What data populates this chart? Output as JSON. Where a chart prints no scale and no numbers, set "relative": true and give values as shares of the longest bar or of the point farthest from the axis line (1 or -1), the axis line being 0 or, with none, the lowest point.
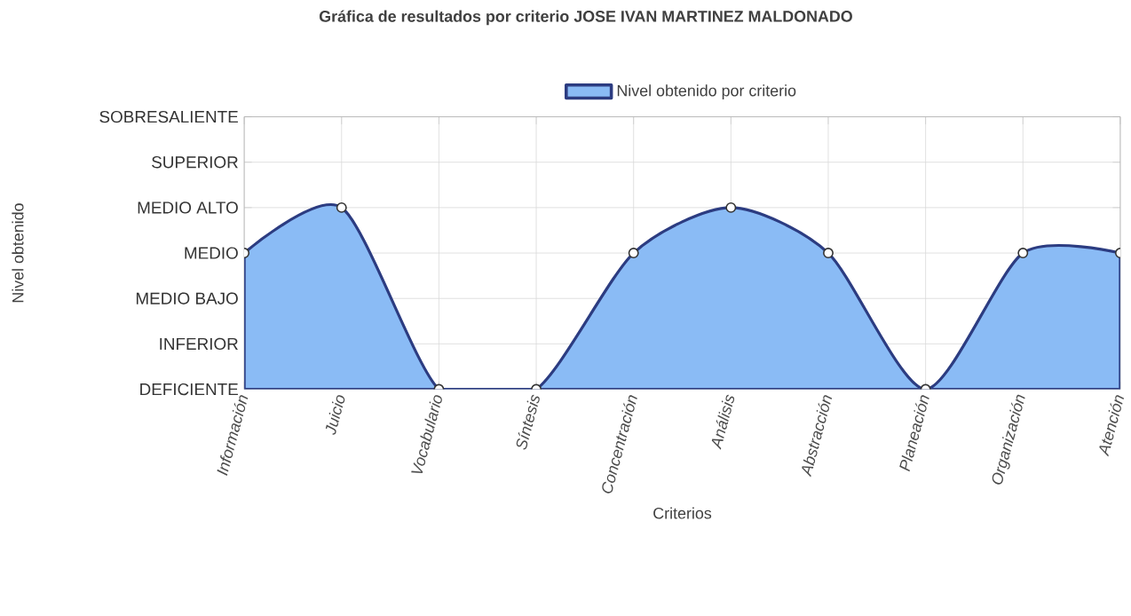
{
  "chart_data": {
    "type": "area",
    "title": "Gráfica de resultados por criterio JOSE IVAN MARTINEZ MALDONADO",
    "xlabel": "Criterios",
    "categories": [
      "Información",
      "Juicio",
      "Vocabulario",
      "Síntesis",
      "Concentración",
      "Análisis",
      "Abstracción",
      "Planeación",
      "Organización",
      "Atención"
    ],
    "series": [
      {
        "name": "Nivel obtenido por criterio",
        "color": "#8abbf5",
        "values": [
          0.75,
          1,
          0,
          0,
          0.75,
          1,
          0.75,
          0,
          0.75,
          0.75
        ]
      }
    ],
    "relative": true,
    "annotations": [
      "Nivel obtenido",
      "SOBRESALIENTE",
      "SUPERIOR",
      "MEDIO ALTO",
      "MEDIO",
      "MEDIO BAJO",
      "INFERIOR",
      "DEFICIENTE"
    ],
    "grid": true,
    "legend": "top",
    "marker": "circle",
    "line_style": "solid"
  }
}
